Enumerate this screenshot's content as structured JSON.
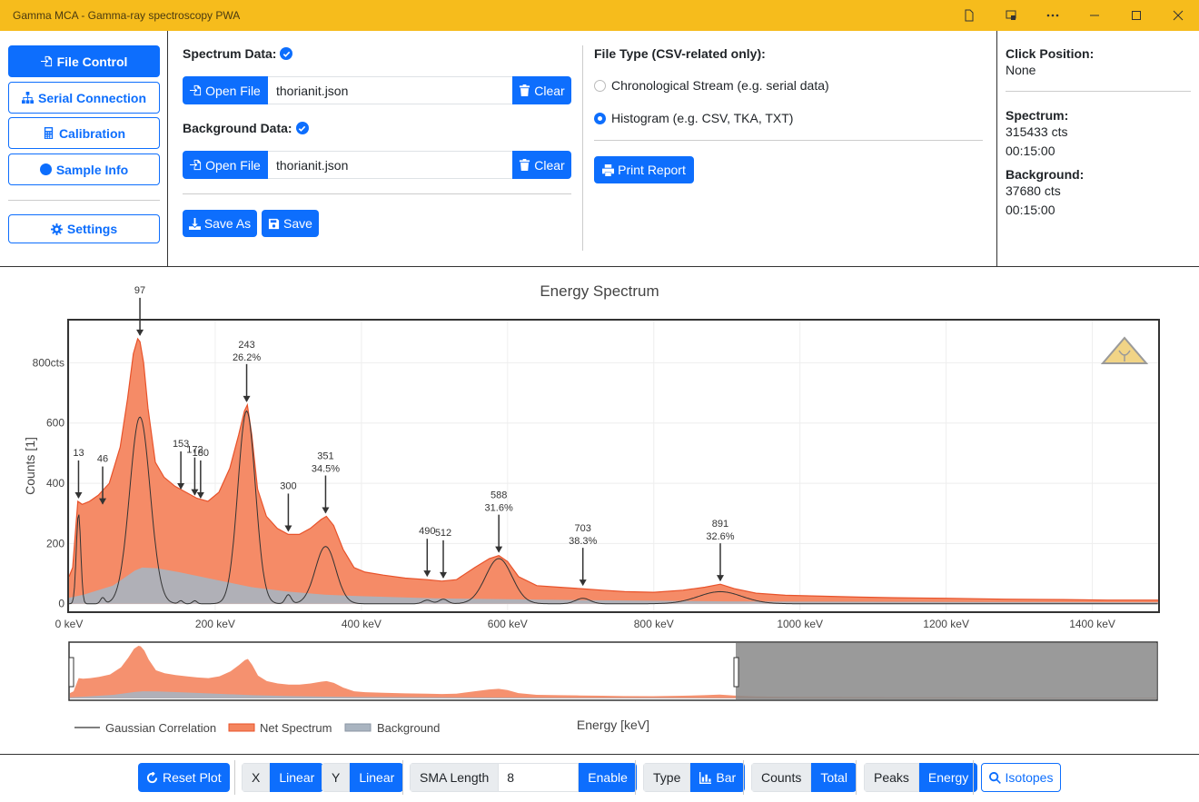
{
  "window": {
    "title": "Gamma MCA - Gamma-ray spectroscopy PWA"
  },
  "nav": {
    "file_control": "File Control",
    "serial_connection": "Serial Connection",
    "calibration": "Calibration",
    "sample_info": "Sample Info",
    "settings": "Settings"
  },
  "spectrum": {
    "label": "Spectrum Data:",
    "open": "Open File",
    "file": "thorianit.json",
    "clear": "Clear"
  },
  "background": {
    "label": "Background Data:",
    "open": "Open File",
    "file": "thorianit.json",
    "clear": "Clear"
  },
  "actions": {
    "save_as": "Save As",
    "save": "Save"
  },
  "file_type": {
    "label": "File Type (CSV-related only):",
    "option_stream": "Chronological Stream (e.g. serial data)",
    "option_histogram": "Histogram (e.g. CSV, TKA, TXT)",
    "selected": "histogram"
  },
  "print_report": "Print Report",
  "info": {
    "click_position_label": "Click Position:",
    "click_position_value": "None",
    "spectrum_label": "Spectrum:",
    "spectrum_counts": "315433 cts",
    "spectrum_time": "00:15:00",
    "background_label": "Background:",
    "background_counts": "37680 cts",
    "background_time": "00:15:00"
  },
  "chart_data": {
    "type": "area",
    "title": "Energy Spectrum",
    "xlabel": "Energy [keV]",
    "ylabel": "Counts [1]",
    "xlim": [
      0,
      1490
    ],
    "ylim": [
      -25,
      940
    ],
    "x_ticks": [
      0,
      200,
      400,
      600,
      800,
      1000,
      1200,
      1400
    ],
    "x_tick_labels": [
      "0 keV",
      "200 keV",
      "400 keV",
      "600 keV",
      "800 keV",
      "1000 keV",
      "1200 keV",
      "1400 keV"
    ],
    "y_ticks": [
      0,
      200,
      400,
      600,
      800
    ],
    "y_tick_labels": [
      "0",
      "200",
      "400",
      "600",
      "800cts"
    ],
    "grid": true,
    "legend_position": "bottom-left",
    "legend": [
      "Gaussian Correlation",
      "Net Spectrum",
      "Background"
    ],
    "colors": {
      "net": "#f4855f",
      "net_line": "#e8522a",
      "background": "#a9b4c0",
      "gaussian": "#333333"
    },
    "series": [
      {
        "name": "Net Spectrum",
        "x": [
          0,
          5,
          12,
          18,
          28,
          40,
          55,
          70,
          80,
          88,
          94,
          97,
          102,
          108,
          118,
          130,
          145,
          160,
          175,
          190,
          205,
          220,
          232,
          240,
          244,
          250,
          258,
          270,
          285,
          300,
          315,
          330,
          345,
          352,
          362,
          375,
          390,
          405,
          430,
          460,
          490,
          510,
          530,
          555,
          575,
          588,
          600,
          615,
          640,
          670,
          700,
          730,
          760,
          800,
          840,
          870,
          891,
          910,
          940,
          980,
          1030,
          1080,
          1130,
          1200,
          1280,
          1360,
          1420,
          1460,
          1490
        ],
        "y": [
          90,
          120,
          340,
          330,
          340,
          360,
          400,
          520,
          680,
          830,
          880,
          870,
          800,
          650,
          470,
          420,
          390,
          370,
          350,
          340,
          370,
          450,
          560,
          640,
          660,
          560,
          380,
          290,
          250,
          230,
          230,
          250,
          280,
          290,
          260,
          180,
          120,
          105,
          95,
          85,
          80,
          75,
          80,
          120,
          150,
          160,
          140,
          90,
          60,
          55,
          50,
          45,
          40,
          38,
          45,
          55,
          65,
          50,
          35,
          28,
          25,
          22,
          20,
          18,
          15,
          14,
          12,
          12,
          12
        ]
      },
      {
        "name": "Background",
        "x": [
          0,
          20,
          60,
          90,
          100,
          120,
          150,
          200,
          250,
          300,
          350,
          400,
          500,
          600,
          700,
          800,
          900,
          1000,
          1200,
          1490
        ],
        "y": [
          20,
          30,
          60,
          110,
          120,
          118,
          105,
          80,
          55,
          40,
          30,
          25,
          18,
          15,
          12,
          10,
          8,
          7,
          6,
          5
        ]
      }
    ],
    "peaks": [
      {
        "energy": 13,
        "y": 340,
        "label": "13"
      },
      {
        "energy": 46,
        "y": 320,
        "label": "46"
      },
      {
        "energy": 97,
        "y": 880,
        "label": "97"
      },
      {
        "energy": 153,
        "y": 370,
        "label": "153"
      },
      {
        "energy": 172,
        "y": 350,
        "label": "172"
      },
      {
        "energy": 180,
        "y": 340,
        "label": "180"
      },
      {
        "energy": 243,
        "y": 660,
        "label": "243",
        "label2": "26.2%"
      },
      {
        "energy": 300,
        "y": 230,
        "label": "300"
      },
      {
        "energy": 351,
        "y": 290,
        "label": "351",
        "label2": "34.5%"
      },
      {
        "energy": 490,
        "y": 80,
        "label": "490"
      },
      {
        "energy": 512,
        "y": 75,
        "label": "512"
      },
      {
        "energy": 588,
        "y": 160,
        "label": "588",
        "label2": "31.6%"
      },
      {
        "energy": 703,
        "y": 50,
        "label": "703",
        "label2": "38.3%"
      },
      {
        "energy": 891,
        "y": 65,
        "label": "891",
        "label2": "32.6%"
      }
    ]
  },
  "toolbar": {
    "reset_plot": "Reset Plot",
    "x_label": "X",
    "x_value": "Linear",
    "y_label": "Y",
    "y_value": "Linear",
    "sma_label": "SMA Length",
    "sma_value": "8",
    "sma_enable": "Enable",
    "type_label": "Type",
    "type_value": "Bar",
    "counts_label": "Counts",
    "counts_value": "Total",
    "peaks_label": "Peaks",
    "peaks_value": "Energy",
    "isotopes": "Isotopes"
  }
}
